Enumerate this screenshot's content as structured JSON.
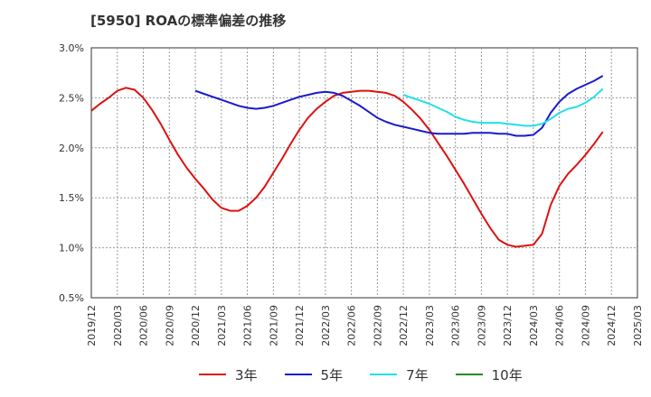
{
  "chart_data": {
    "type": "line",
    "title": "[5950]  ROAの標準偏差の推移",
    "xlabel": "",
    "ylabel": "",
    "ylim": [
      0.5,
      3.0
    ],
    "yticks": [
      "0.5%",
      "1.0%",
      "1.5%",
      "2.0%",
      "2.5%",
      "3.0%"
    ],
    "yvalues": [
      0.5,
      1.0,
      1.5,
      2.0,
      2.5,
      3.0
    ],
    "xticks": [
      "2019/12",
      "2020/03",
      "2020/06",
      "2020/09",
      "2020/12",
      "2021/03",
      "2021/06",
      "2021/09",
      "2021/12",
      "2022/03",
      "2022/06",
      "2022/09",
      "2022/12",
      "2023/03",
      "2023/06",
      "2023/09",
      "2023/12",
      "2024/03",
      "2024/06",
      "2024/09",
      "2024/12",
      "2025/03"
    ],
    "grid": true,
    "legend_position": "bottom",
    "series": [
      {
        "name": "3年",
        "color": "#dd1111",
        "values": [
          [
            "2019/12",
            2.37
          ],
          [
            "2020/01",
            2.44
          ],
          [
            "2020/02",
            2.5
          ],
          [
            "2020/03",
            2.57
          ],
          [
            "2020/04",
            2.6
          ],
          [
            "2020/05",
            2.58
          ],
          [
            "2020/06",
            2.5
          ],
          [
            "2020/07",
            2.38
          ],
          [
            "2020/08",
            2.24
          ],
          [
            "2020/09",
            2.08
          ],
          [
            "2020/10",
            1.93
          ],
          [
            "2020/11",
            1.8
          ],
          [
            "2020/12",
            1.69
          ],
          [
            "2021/01",
            1.59
          ],
          [
            "2021/02",
            1.48
          ],
          [
            "2021/03",
            1.4
          ],
          [
            "2021/04",
            1.37
          ],
          [
            "2021/05",
            1.37
          ],
          [
            "2021/06",
            1.42
          ],
          [
            "2021/07",
            1.5
          ],
          [
            "2021/08",
            1.61
          ],
          [
            "2021/09",
            1.75
          ],
          [
            "2021/10",
            1.89
          ],
          [
            "2021/11",
            2.04
          ],
          [
            "2021/12",
            2.18
          ],
          [
            "2022/01",
            2.3
          ],
          [
            "2022/02",
            2.39
          ],
          [
            "2022/03",
            2.46
          ],
          [
            "2022/04",
            2.52
          ],
          [
            "2022/05",
            2.55
          ],
          [
            "2022/06",
            2.56
          ],
          [
            "2022/07",
            2.57
          ],
          [
            "2022/08",
            2.57
          ],
          [
            "2022/09",
            2.56
          ],
          [
            "2022/10",
            2.55
          ],
          [
            "2022/11",
            2.52
          ],
          [
            "2022/12",
            2.46
          ],
          [
            "2023/01",
            2.38
          ],
          [
            "2023/02",
            2.29
          ],
          [
            "2023/03",
            2.18
          ],
          [
            "2023/04",
            2.05
          ],
          [
            "2023/05",
            1.92
          ],
          [
            "2023/06",
            1.78
          ],
          [
            "2023/07",
            1.64
          ],
          [
            "2023/08",
            1.49
          ],
          [
            "2023/09",
            1.34
          ],
          [
            "2023/10",
            1.2
          ],
          [
            "2023/11",
            1.08
          ],
          [
            "2023/12",
            1.03
          ],
          [
            "2024/01",
            1.01
          ],
          [
            "2024/02",
            1.02
          ],
          [
            "2024/03",
            1.03
          ],
          [
            "2024/04",
            1.14
          ],
          [
            "2024/05",
            1.43
          ],
          [
            "2024/06",
            1.62
          ],
          [
            "2024/07",
            1.74
          ],
          [
            "2024/08",
            1.83
          ],
          [
            "2024/09",
            1.93
          ],
          [
            "2024/10",
            2.04
          ],
          [
            "2024/11",
            2.16
          ]
        ]
      },
      {
        "name": "5年",
        "color": "#1a1acc",
        "values": [
          [
            "2020/12",
            2.57
          ],
          [
            "2021/01",
            2.54
          ],
          [
            "2021/02",
            2.51
          ],
          [
            "2021/03",
            2.48
          ],
          [
            "2021/04",
            2.45
          ],
          [
            "2021/05",
            2.42
          ],
          [
            "2021/06",
            2.4
          ],
          [
            "2021/07",
            2.39
          ],
          [
            "2021/08",
            2.4
          ],
          [
            "2021/09",
            2.42
          ],
          [
            "2021/10",
            2.45
          ],
          [
            "2021/11",
            2.48
          ],
          [
            "2021/12",
            2.51
          ],
          [
            "2022/01",
            2.53
          ],
          [
            "2022/02",
            2.55
          ],
          [
            "2022/03",
            2.56
          ],
          [
            "2022/04",
            2.55
          ],
          [
            "2022/05",
            2.52
          ],
          [
            "2022/06",
            2.47
          ],
          [
            "2022/07",
            2.42
          ],
          [
            "2022/08",
            2.36
          ],
          [
            "2022/09",
            2.3
          ],
          [
            "2022/10",
            2.26
          ],
          [
            "2022/11",
            2.23
          ],
          [
            "2022/12",
            2.21
          ],
          [
            "2023/01",
            2.19
          ],
          [
            "2023/02",
            2.17
          ],
          [
            "2023/03",
            2.15
          ],
          [
            "2023/04",
            2.14
          ],
          [
            "2023/05",
            2.14
          ],
          [
            "2023/06",
            2.14
          ],
          [
            "2023/07",
            2.14
          ],
          [
            "2023/08",
            2.15
          ],
          [
            "2023/09",
            2.15
          ],
          [
            "2023/10",
            2.15
          ],
          [
            "2023/11",
            2.14
          ],
          [
            "2023/12",
            2.14
          ],
          [
            "2024/01",
            2.12
          ],
          [
            "2024/02",
            2.12
          ],
          [
            "2024/03",
            2.13
          ],
          [
            "2024/04",
            2.2
          ],
          [
            "2024/05",
            2.35
          ],
          [
            "2024/06",
            2.46
          ],
          [
            "2024/07",
            2.54
          ],
          [
            "2024/08",
            2.59
          ],
          [
            "2024/09",
            2.63
          ],
          [
            "2024/10",
            2.67
          ],
          [
            "2024/11",
            2.72
          ]
        ]
      },
      {
        "name": "7年",
        "color": "#22e0e8",
        "values": [
          [
            "2022/12",
            2.53
          ],
          [
            "2023/01",
            2.5
          ],
          [
            "2023/02",
            2.47
          ],
          [
            "2023/03",
            2.44
          ],
          [
            "2023/04",
            2.4
          ],
          [
            "2023/05",
            2.36
          ],
          [
            "2023/06",
            2.31
          ],
          [
            "2023/07",
            2.28
          ],
          [
            "2023/08",
            2.26
          ],
          [
            "2023/09",
            2.25
          ],
          [
            "2023/10",
            2.25
          ],
          [
            "2023/11",
            2.25
          ],
          [
            "2023/12",
            2.24
          ],
          [
            "2024/01",
            2.23
          ],
          [
            "2024/02",
            2.22
          ],
          [
            "2024/03",
            2.22
          ],
          [
            "2024/04",
            2.24
          ],
          [
            "2024/05",
            2.29
          ],
          [
            "2024/06",
            2.35
          ],
          [
            "2024/07",
            2.39
          ],
          [
            "2024/08",
            2.41
          ],
          [
            "2024/09",
            2.45
          ],
          [
            "2024/10",
            2.51
          ],
          [
            "2024/11",
            2.59
          ]
        ]
      },
      {
        "name": "10年",
        "color": "#228b22",
        "values": []
      }
    ]
  }
}
